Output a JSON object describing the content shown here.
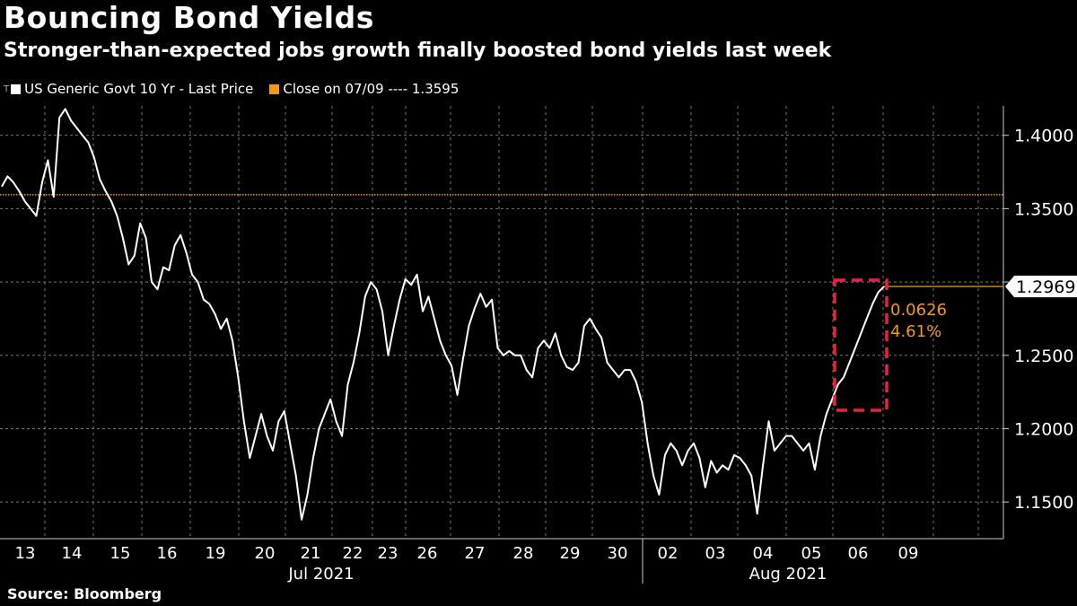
{
  "title": "Bouncing Bond Yields",
  "subtitle": "Stronger-than-expected jobs growth finally boosted bond yields last week",
  "legend": {
    "icon": "T",
    "series_label": "US Generic Govt 10 Yr - Last Price",
    "ref_label": "Close on 07/09 ---- 1.3595"
  },
  "source": "Source: Bloomberg",
  "colors": {
    "background": "#000000",
    "line": "#ffffff",
    "reference": "#f5961e",
    "highlight": "#e8213f",
    "grid": "#777777"
  },
  "chart_data": {
    "type": "line",
    "ylim": [
      1.125,
      1.42
    ],
    "y_ticks": [
      1.15,
      1.2,
      1.25,
      1.3,
      1.35,
      1.4
    ],
    "y_tick_labels": [
      "1.1500",
      "1.2000",
      "1.2500",
      "1.3000",
      "1.3500",
      "1.4000"
    ],
    "grid": "dashed",
    "x_day_labels": [
      "13",
      "14",
      "15",
      "16",
      "19",
      "20",
      "21",
      "22",
      "23",
      "26",
      "27",
      "28",
      "29",
      "30",
      "02",
      "03",
      "04",
      "05",
      "06",
      "09"
    ],
    "x_month_labels": [
      "Jul 2021",
      "Aug 2021"
    ],
    "series": [
      {
        "values": [
          1.365,
          1.372,
          1.368,
          1.362,
          1.355,
          1.35,
          1.345,
          1.368,
          1.383,
          1.358,
          1.412,
          1.418,
          1.41,
          1.405,
          1.4,
          1.395,
          1.385,
          1.37,
          1.362,
          1.355,
          1.345,
          1.33,
          1.312,
          1.318,
          1.34,
          1.33,
          1.3,
          1.295,
          1.31,
          1.308,
          1.325,
          1.332,
          1.32,
          1.305,
          1.3,
          1.288,
          1.285,
          1.278,
          1.268,
          1.275,
          1.26,
          1.235,
          1.205,
          1.18,
          1.195,
          1.21,
          1.195,
          1.185,
          1.205,
          1.212,
          1.19,
          1.168,
          1.138,
          1.155,
          1.18,
          1.2,
          1.21,
          1.22,
          1.205,
          1.195,
          1.23,
          1.245,
          1.265,
          1.29,
          1.3,
          1.295,
          1.28,
          1.25,
          1.27,
          1.288,
          1.302,
          1.298,
          1.305,
          1.28,
          1.29,
          1.275,
          1.26,
          1.25,
          1.243,
          1.223,
          1.248,
          1.27,
          1.282,
          1.292,
          1.283,
          1.288,
          1.255,
          1.25,
          1.253,
          1.25,
          1.25,
          1.24,
          1.235,
          1.255,
          1.26,
          1.255,
          1.265,
          1.25,
          1.242,
          1.24,
          1.245,
          1.27,
          1.275,
          1.268,
          1.262,
          1.245,
          1.24,
          1.235,
          1.24,
          1.24,
          1.232,
          1.218,
          1.19,
          1.168,
          1.155,
          1.182,
          1.19,
          1.185,
          1.175,
          1.185,
          1.19,
          1.18,
          1.16,
          1.178,
          1.17,
          1.175,
          1.172,
          1.182,
          1.18,
          1.175,
          1.168,
          1.142,
          1.175,
          1.205,
          1.185,
          1.19,
          1.195,
          1.195,
          1.19,
          1.185,
          1.19,
          1.172,
          1.195,
          1.21,
          1.22,
          1.23,
          1.235,
          1.245,
          1.255,
          1.265,
          1.275,
          1.285,
          1.293,
          1.2969
        ]
      }
    ],
    "last_value": 1.2969,
    "last_value_label": "1.2969",
    "reference_value": 1.3595,
    "annotation": {
      "change": "0.0626",
      "pct_change": "4.61%"
    }
  }
}
